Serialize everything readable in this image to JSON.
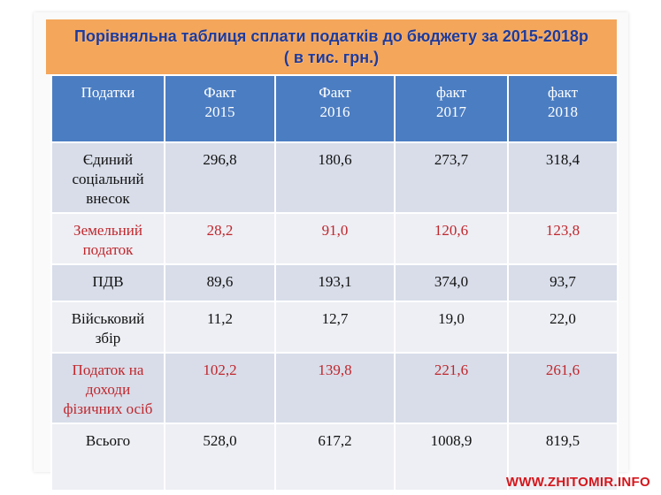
{
  "title": {
    "line1": "Порівняльна таблиця сплати податків до бюджету за 2015-2018р",
    "line2": "( в тис. грн.)"
  },
  "table": {
    "headers": [
      "Податки",
      "Факт\n2015",
      "Факт\n2016",
      "факт\n2017",
      "факт\n2018"
    ],
    "rows": [
      {
        "label": "Єдиний\nсоціальний\nвнесок",
        "values": [
          "296,8",
          "180,6",
          "273,7",
          "318,4"
        ]
      },
      {
        "label": "Земельний\nподаток",
        "values": [
          "28,2",
          "91,0",
          "120,6",
          "123,8"
        ]
      },
      {
        "label": "ПДВ",
        "values": [
          "89,6",
          "193,1",
          "374,0",
          "93,7"
        ]
      },
      {
        "label": "Військовий\nзбір",
        "values": [
          "11,2",
          "12,7",
          "19,0",
          "22,0"
        ]
      },
      {
        "label": "Податок на\nдоходи\nфізичних осіб",
        "values": [
          "102,2",
          "139,8",
          "221,6",
          "261,6"
        ]
      },
      {
        "label": "Всього",
        "values": [
          "528,0",
          "617,2",
          "1008,9",
          "819,5"
        ]
      }
    ]
  },
  "colors": {
    "header_bg": "#4b7dc2",
    "title_bg": "#f4a65a",
    "title_text": "#1f3a9a",
    "highlight_text": "#c0262c"
  },
  "watermark": "WWW.ZHITOMIR.INFO"
}
